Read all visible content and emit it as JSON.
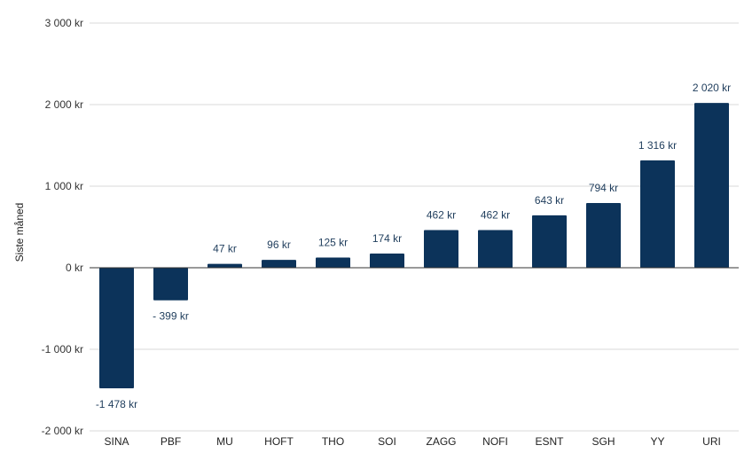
{
  "chart_data": {
    "type": "bar",
    "categories": [
      "SINA",
      "PBF",
      "MU",
      "HOFT",
      "THO",
      "SOI",
      "ZAGG",
      "NOFI",
      "ESNT",
      "SGH",
      "YY",
      "URI"
    ],
    "values": [
      -1478,
      -399,
      47,
      96,
      125,
      174,
      462,
      462,
      643,
      794,
      1316,
      2020
    ],
    "data_labels": [
      "-1 478 kr",
      "- 399 kr",
      "47 kr",
      "96 kr",
      "125 kr",
      "174 kr",
      "462 kr",
      "462 kr",
      "643 kr",
      "794 kr",
      "1 316 kr",
      "2 020 kr"
    ],
    "ylabel": "Siste måned",
    "xlabel": "",
    "title": "",
    "ylim": [
      -2000,
      3000
    ],
    "yticks": [
      3000,
      2000,
      1000,
      0,
      -1000,
      -2000
    ],
    "ytick_labels": [
      "3 000 kr",
      "2 000 kr",
      "1 000 kr",
      "0 kr",
      "-1 000 kr",
      "-2 000 kr"
    ],
    "grid": true,
    "legend": "none",
    "bar_color": "#0c335a"
  }
}
